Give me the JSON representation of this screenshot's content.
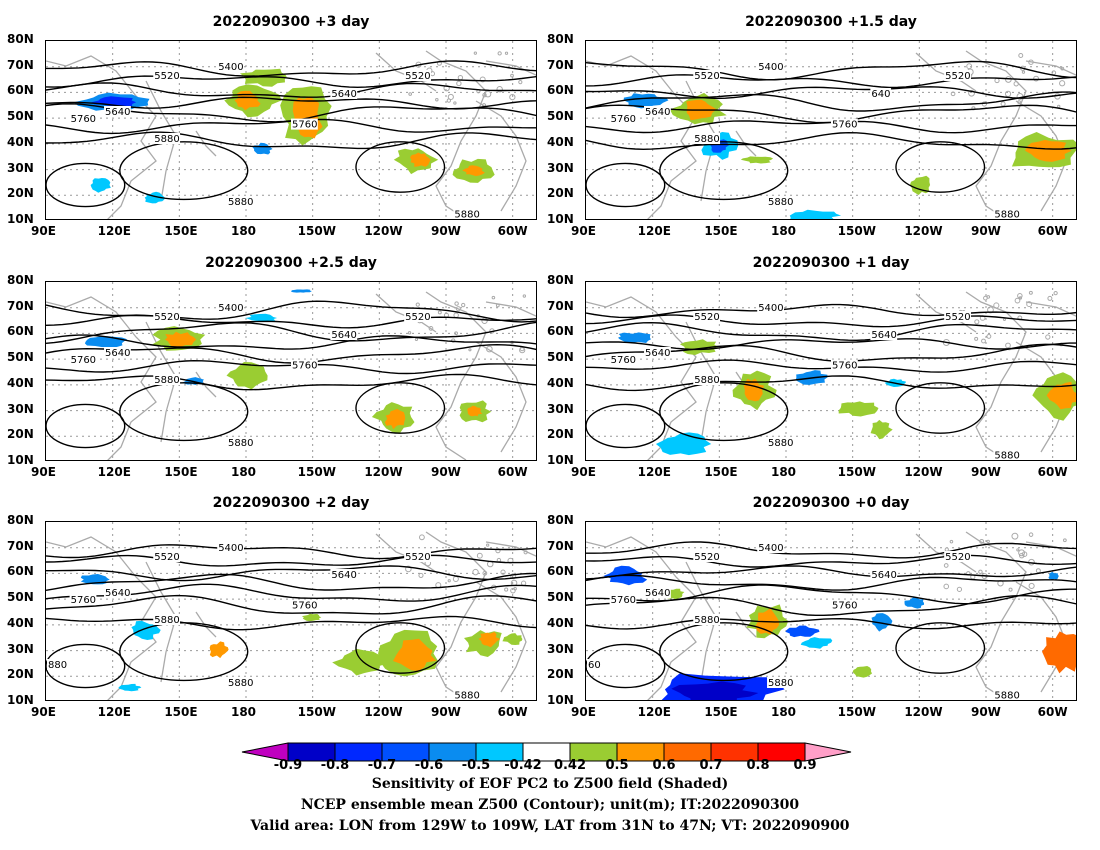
{
  "panels": [
    {
      "title": "2022090300 +3 day",
      "contour_labels": [
        "5400",
        "5520",
        "5520",
        "5640",
        "5640",
        "5760",
        "5760",
        "5880",
        "5880",
        "5880"
      ]
    },
    {
      "title": "2022090300 +1.5 day",
      "contour_labels": [
        "5400",
        "5520",
        "5520",
        "640",
        "5640",
        "5760",
        "5760",
        "5880",
        "5880",
        "5880"
      ]
    },
    {
      "title": "2022090300 +2.5 day",
      "contour_labels": [
        "5400",
        "5520",
        "5520",
        "5640",
        "5640",
        "5760",
        "5760",
        "5880",
        "5880"
      ]
    },
    {
      "title": "2022090300 +1 day",
      "contour_labels": [
        "5400",
        "5520",
        "5520",
        "5640",
        "5640",
        "5760",
        "5760",
        "5880",
        "5880",
        "5880"
      ]
    },
    {
      "title": "2022090300 +2 day",
      "contour_labels": [
        "5400",
        "5520",
        "5520",
        "5640",
        "5640",
        "5760",
        "5760",
        "5880",
        "5880",
        "5880",
        "880"
      ]
    },
    {
      "title": "2022090300 +0 day",
      "contour_labels": [
        "5400",
        "5520",
        "5520",
        "5640",
        "5640",
        "5760",
        "5760",
        "5880",
        "5880",
        "5880",
        "60"
      ]
    }
  ],
  "lat_ticks": [
    "80N",
    "70N",
    "60N",
    "50N",
    "40N",
    "30N",
    "20N",
    "10N"
  ],
  "lon_ticks": [
    "90E",
    "120E",
    "150E",
    "180",
    "150W",
    "120W",
    "90W",
    "60W"
  ],
  "colorbar": {
    "labels": [
      "-0.9",
      "-0.8",
      "-0.7",
      "-0.6",
      "-0.5",
      "-0.42",
      "0.42",
      "0.5",
      "0.6",
      "0.7",
      "0.8",
      "0.9"
    ],
    "colors": [
      "#c000c0",
      "#0000c8",
      "#0028ff",
      "#0050ff",
      "#0a8cf0",
      "#00c8ff",
      "#ffffff",
      "#9acd32",
      "#ff9900",
      "#ff6a00",
      "#ff3200",
      "#ff0000",
      "#ff9fc8"
    ]
  },
  "caption": {
    "line1": "Sensitivity of EOF PC2 to Z500 field (Shaded)",
    "line2": "NCEP ensemble mean Z500 (Contour); unit(m); IT:2022090300",
    "line3": "Valid area: LON from 129W to 109W, LAT from 31N to 47N; VT: 2022090900"
  }
}
